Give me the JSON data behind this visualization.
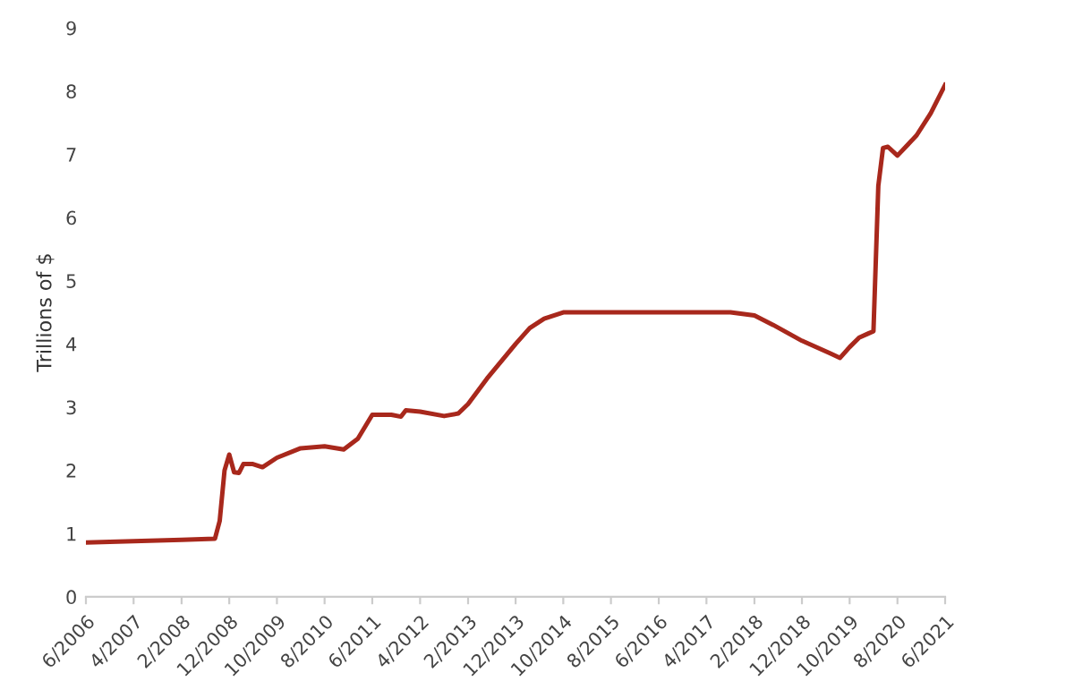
{
  "chart_data": {
    "type": "line",
    "ylabel": "Trillions of $",
    "x": [
      "2006-06",
      "2007-04",
      "2008-02",
      "2008-09",
      "2008-10",
      "2008-11",
      "2008-12",
      "2009-01",
      "2009-02",
      "2009-03",
      "2009-05",
      "2009-07",
      "2009-10",
      "2010-03",
      "2010-08",
      "2010-12",
      "2011-03",
      "2011-06",
      "2011-10",
      "2011-12",
      "2012-01",
      "2012-04",
      "2012-09",
      "2012-12",
      "2013-02",
      "2013-06",
      "2013-12",
      "2014-03",
      "2014-06",
      "2014-10",
      "2015-03",
      "2015-08",
      "2016-06",
      "2017-04",
      "2017-09",
      "2018-02",
      "2018-06",
      "2018-12",
      "2019-06",
      "2019-08",
      "2019-10",
      "2019-12",
      "2020-02",
      "2020-03",
      "2020-04",
      "2020-05",
      "2020-06",
      "2020-08",
      "2020-12",
      "2021-03",
      "2021-06"
    ],
    "series": [
      {
        "color": "#a8281c",
        "values": [
          0.86,
          0.88,
          0.9,
          0.92,
          1.2,
          2.0,
          2.25,
          1.97,
          1.96,
          2.1,
          2.1,
          2.05,
          2.2,
          2.35,
          2.38,
          2.33,
          2.5,
          2.88,
          2.88,
          2.85,
          2.95,
          2.93,
          2.86,
          2.9,
          3.05,
          3.45,
          4.0,
          4.25,
          4.4,
          4.5,
          4.5,
          4.5,
          4.5,
          4.5,
          4.5,
          4.45,
          4.3,
          4.05,
          3.85,
          3.78,
          3.95,
          4.1,
          4.17,
          4.2,
          6.5,
          7.1,
          7.12,
          6.98,
          7.3,
          7.65,
          8.1
        ]
      }
    ],
    "xlim": [
      "2006-06",
      "2021-06"
    ],
    "xticks": [
      {
        "value": "2006-06",
        "label": "6/2006"
      },
      {
        "value": "2007-04",
        "label": "4/2007"
      },
      {
        "value": "2008-02",
        "label": "2/2008"
      },
      {
        "value": "2008-12",
        "label": "12/2008"
      },
      {
        "value": "2009-10",
        "label": "10/2009"
      },
      {
        "value": "2010-08",
        "label": "8/2010"
      },
      {
        "value": "2011-06",
        "label": "6/2011"
      },
      {
        "value": "2012-04",
        "label": "4/2012"
      },
      {
        "value": "2013-02",
        "label": "2/2013"
      },
      {
        "value": "2013-12",
        "label": "12/2013"
      },
      {
        "value": "2014-10",
        "label": "10/2014"
      },
      {
        "value": "2015-08",
        "label": "8/2015"
      },
      {
        "value": "2016-06",
        "label": "6/2016"
      },
      {
        "value": "2017-04",
        "label": "4/2017"
      },
      {
        "value": "2018-02",
        "label": "2/2018"
      },
      {
        "value": "2018-12",
        "label": "12/2018"
      },
      {
        "value": "2019-10",
        "label": "10/2019"
      },
      {
        "value": "2020-08",
        "label": "8/2020"
      },
      {
        "value": "2021-06",
        "label": "6/2021"
      }
    ],
    "ylim": [
      0,
      9
    ],
    "yticks": [
      0,
      1,
      2,
      3,
      4,
      5,
      6,
      7,
      8,
      9
    ],
    "grid": false,
    "marker": "none",
    "line_style": "solid"
  }
}
